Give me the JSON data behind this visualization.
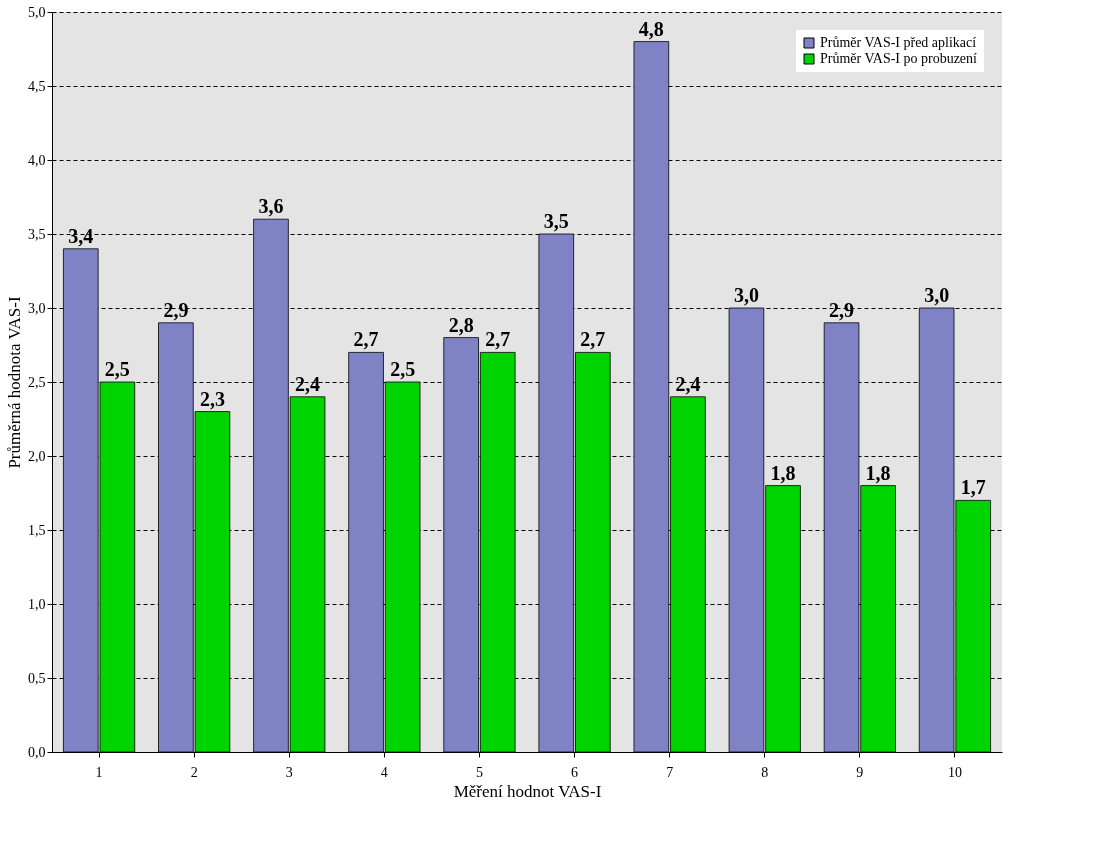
{
  "chart_data": {
    "type": "bar",
    "xlabel": "Měření hodnot VAS-I",
    "ylabel": "Průměrná hodnota VAS-I",
    "categories": [
      "1",
      "2",
      "3",
      "4",
      "5",
      "6",
      "7",
      "8",
      "9",
      "10"
    ],
    "series": [
      {
        "name": "Průměr VAS-I před aplikací",
        "color": "#7f83c6",
        "values": [
          3.4,
          2.9,
          3.6,
          2.7,
          2.8,
          3.5,
          4.8,
          3.0,
          2.9,
          3.0
        ],
        "value_labels": [
          "3,4",
          "2,9",
          "3,6",
          "2,7",
          "2,8",
          "3,5",
          "4,8",
          "3,0",
          "2,9",
          "3,0"
        ]
      },
      {
        "name": "Průměr VAS-I po probuzení",
        "color": "#00d400",
        "values": [
          2.5,
          2.3,
          2.4,
          2.5,
          2.7,
          2.7,
          2.4,
          1.8,
          1.8,
          1.7
        ],
        "value_labels": [
          "2,5",
          "2,3",
          "2,4",
          "2,5",
          "2,7",
          "2,7",
          "2,4",
          "1,8",
          "1,8",
          "1,7"
        ]
      }
    ],
    "ylim": [
      0,
      5
    ],
    "yticks": [
      {
        "value": 0,
        "label": "0,0"
      },
      {
        "value": 0.5,
        "label": "0,5"
      },
      {
        "value": 1,
        "label": "1,0"
      },
      {
        "value": 1.5,
        "label": "1,5"
      },
      {
        "value": 2,
        "label": "2,0"
      },
      {
        "value": 2.5,
        "label": "2,5"
      },
      {
        "value": 3,
        "label": "3,0"
      },
      {
        "value": 3.5,
        "label": "3,5"
      },
      {
        "value": 4,
        "label": "4,0"
      },
      {
        "value": 4.5,
        "label": "4,5"
      },
      {
        "value": 5,
        "label": "5,0"
      }
    ],
    "grid": "y",
    "legend": "top right"
  }
}
